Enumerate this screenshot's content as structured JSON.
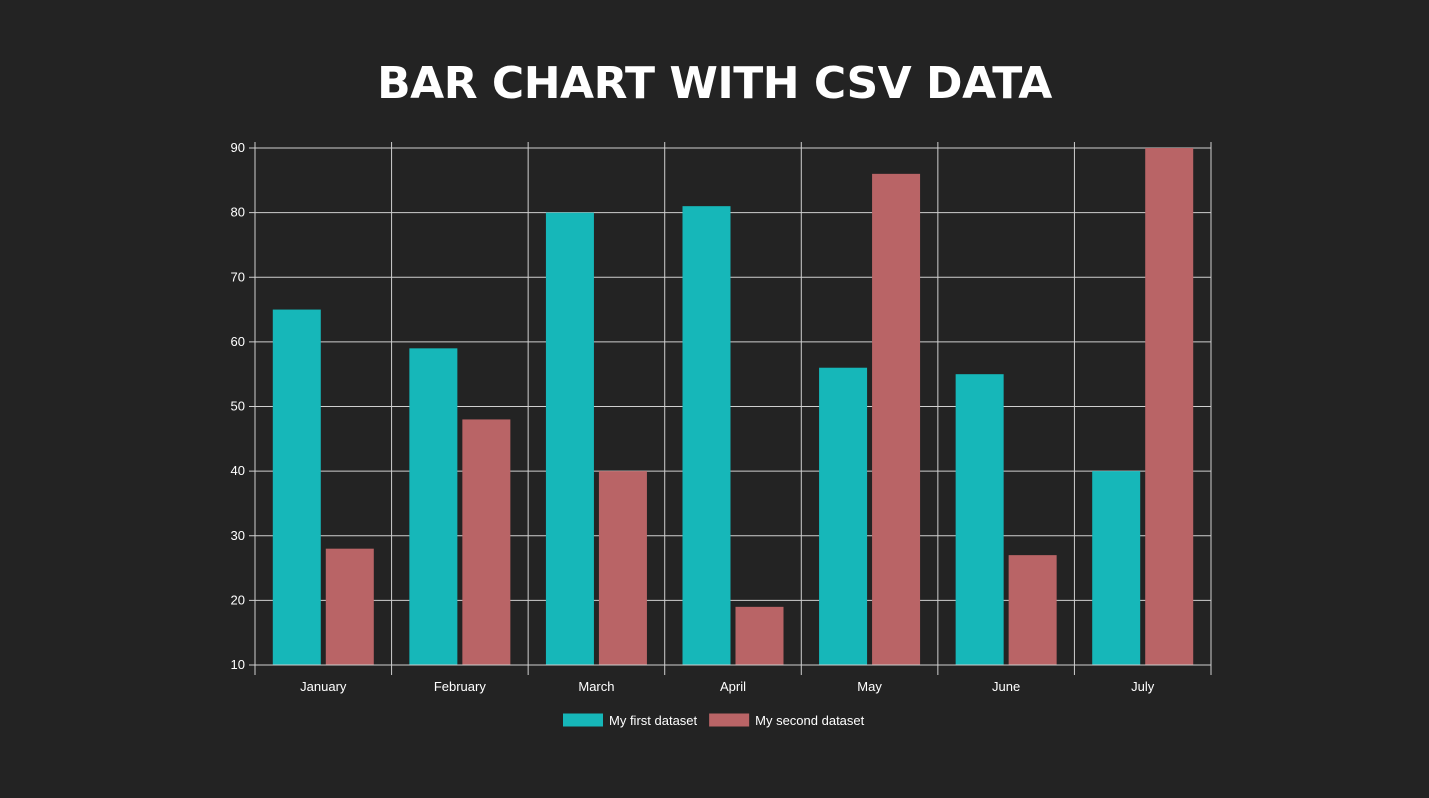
{
  "page": {
    "title": "BAR CHART WITH CSV DATA"
  },
  "chart_data": {
    "type": "bar",
    "title": "BAR CHART WITH CSV DATA",
    "categories": [
      "January",
      "February",
      "March",
      "April",
      "May",
      "June",
      "July"
    ],
    "series": [
      {
        "name": "My first dataset",
        "color": "#16b7b9",
        "values": [
          65,
          59,
          80,
          81,
          56,
          55,
          40
        ]
      },
      {
        "name": "My second dataset",
        "color": "#b96466",
        "values": [
          28,
          48,
          40,
          19,
          86,
          27,
          90
        ]
      }
    ],
    "ylim": [
      10,
      90
    ],
    "yticks": [
      10,
      20,
      30,
      40,
      50,
      60,
      70,
      80,
      90
    ],
    "grid": true,
    "legend_position": "bottom-center",
    "colors": {
      "background": "#232323",
      "grid": "#cfcfcf",
      "text": "#ffffff"
    }
  }
}
